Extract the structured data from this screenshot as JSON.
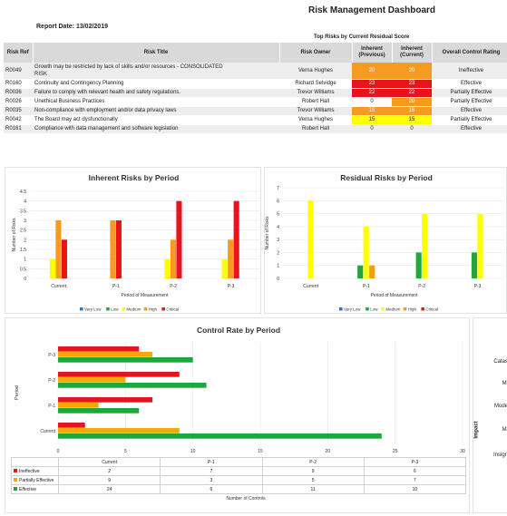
{
  "header": {
    "title": "Risk Management Dashboard",
    "report_date": "Report Date: 13/02/2019"
  },
  "top_risks": {
    "caption": "Top Risks by Current Residual Score",
    "columns": {
      "ref": "Risk Ref",
      "title": "Risk Title",
      "owner": "Risk Owner",
      "inherent_prev_1": "Inherent",
      "inherent_prev_2": "(Previous)",
      "inherent_curr_1": "Inherent",
      "inherent_curr_2": "(Current)",
      "control": "Overall Control Rating"
    },
    "rows": [
      {
        "ref": "R0049",
        "title": "Growth may be restricted by lack of skills and/or resources - CONSOLIDATED",
        "title2": "RISK",
        "owner": "Verna Hughes",
        "prev": "20",
        "curr": "20",
        "prev_color": "#f79a1e",
        "curr_color": "#f79a1e",
        "control": "Ineffective"
      },
      {
        "ref": "R0160",
        "title": "Continuity and Contingency Planning",
        "owner": "Richard Selvidge",
        "prev": "23",
        "curr": "23",
        "prev_color": "#e8141b",
        "curr_color": "#e8141b",
        "control": "Effective"
      },
      {
        "ref": "R0036",
        "title": "Failure to comply with relevant health and safety regulations.",
        "owner": "Trevor Williams",
        "prev": "22",
        "curr": "22",
        "prev_color": "#e8141b",
        "curr_color": "#e8141b",
        "control": "Partially Effective"
      },
      {
        "ref": "R0026",
        "title": "Unethical Business Practices",
        "owner": "Robert Hall",
        "prev": "0",
        "curr": "20",
        "prev_color": "",
        "curr_color": "#f79a1e",
        "control": "Partially Effective"
      },
      {
        "ref": "R0035",
        "title": "Non-compliance with employment and/or data privacy laws",
        "owner": "Trevor Williams",
        "prev": "16",
        "curr": "16",
        "prev_color": "#f79a1e",
        "curr_color": "#f79a1e",
        "control": "Effective"
      },
      {
        "ref": "R0042",
        "title": "The Board may act dysfunctionally",
        "owner": "Verna Hughes",
        "prev": "15",
        "curr": "15",
        "prev_color": "#ffff00",
        "curr_color": "#ffff00",
        "control": "Partially Effective"
      },
      {
        "ref": "R0161",
        "title": "Compliance with data management and software legislation",
        "owner": "Robert Hall",
        "prev": "0",
        "curr": "0",
        "prev_color": "",
        "curr_color": "",
        "control": "Effective"
      }
    ]
  },
  "side_panel": {
    "axis_label": "Impact",
    "labels": [
      "Catas",
      "Mi",
      "Mode",
      "Mi",
      "Insign"
    ]
  },
  "colors": {
    "very_low": "#2e75b6",
    "low": "#1ea83c",
    "medium": "#ffff00",
    "high": "#f79a1e",
    "critical": "#e8141b",
    "ineffective": "#e8141b",
    "partially_effective": "#f5a800",
    "effective": "#1ea83c"
  },
  "chart_data": [
    {
      "type": "bar",
      "title": "Inherent Risks by Period",
      "xlabel": "Period of Measurement",
      "ylabel": "Number of Risks",
      "ylim": [
        0,
        4.5
      ],
      "yticks": [
        "0",
        "0.5",
        "1",
        "1.5",
        "2",
        "2.5",
        "3",
        "3.5",
        "4",
        "4.5"
      ],
      "categories": [
        "Current",
        "P-1",
        "P-2",
        "P-3"
      ],
      "series": [
        {
          "name": "Very Low",
          "color": "#2e75b6",
          "values": [
            0,
            0,
            0,
            0
          ]
        },
        {
          "name": "Low",
          "color": "#1ea83c",
          "values": [
            0,
            0,
            0,
            0
          ]
        },
        {
          "name": "Medium",
          "color": "#ffff00",
          "values": [
            1,
            0,
            1,
            1
          ]
        },
        {
          "name": "High",
          "color": "#f79a1e",
          "values": [
            3,
            3,
            2,
            2
          ]
        },
        {
          "name": "Critical",
          "color": "#e8141b",
          "values": [
            2,
            3,
            4,
            4
          ]
        }
      ],
      "legend": "bottom"
    },
    {
      "type": "bar",
      "title": "Residual Risks by Period",
      "xlabel": "Period of Measurement",
      "ylabel": "Number of Risks",
      "ylim": [
        0,
        7
      ],
      "yticks": [
        "0",
        "1",
        "2",
        "3",
        "4",
        "5",
        "6",
        "7"
      ],
      "categories": [
        "Current",
        "P-1",
        "P-2",
        "P-3"
      ],
      "series": [
        {
          "name": "Very Low",
          "color": "#2e75b6",
          "values": [
            0,
            0,
            0,
            0
          ]
        },
        {
          "name": "Low",
          "color": "#1ea83c",
          "values": [
            0,
            1,
            2,
            2
          ]
        },
        {
          "name": "Medium",
          "color": "#ffff00",
          "values": [
            6,
            4,
            5,
            5
          ]
        },
        {
          "name": "High",
          "color": "#f79a1e",
          "values": [
            0,
            1,
            0,
            0
          ]
        },
        {
          "name": "Critical",
          "color": "#e8141b",
          "values": [
            0,
            0,
            0,
            0
          ]
        }
      ],
      "legend": "bottom"
    },
    {
      "type": "bar",
      "orientation": "horizontal",
      "title": "Control Rate by Period",
      "xlabel": "Number of Controls",
      "ylabel": "Period",
      "xlim": [
        0,
        30
      ],
      "xticks": [
        "0",
        "5",
        "10",
        "15",
        "20",
        "25",
        "30"
      ],
      "categories": [
        "Current",
        "P-1",
        "P-2",
        "P-3"
      ],
      "series": [
        {
          "name": "Ineffective",
          "color": "#e8141b",
          "values": [
            2,
            7,
            9,
            6
          ]
        },
        {
          "name": "Partially Effective",
          "color": "#f5a800",
          "values": [
            9,
            3,
            5,
            7
          ]
        },
        {
          "name": "Effective",
          "color": "#1ea83c",
          "values": [
            24,
            6,
            11,
            10
          ]
        }
      ],
      "legend": "data-table"
    }
  ]
}
